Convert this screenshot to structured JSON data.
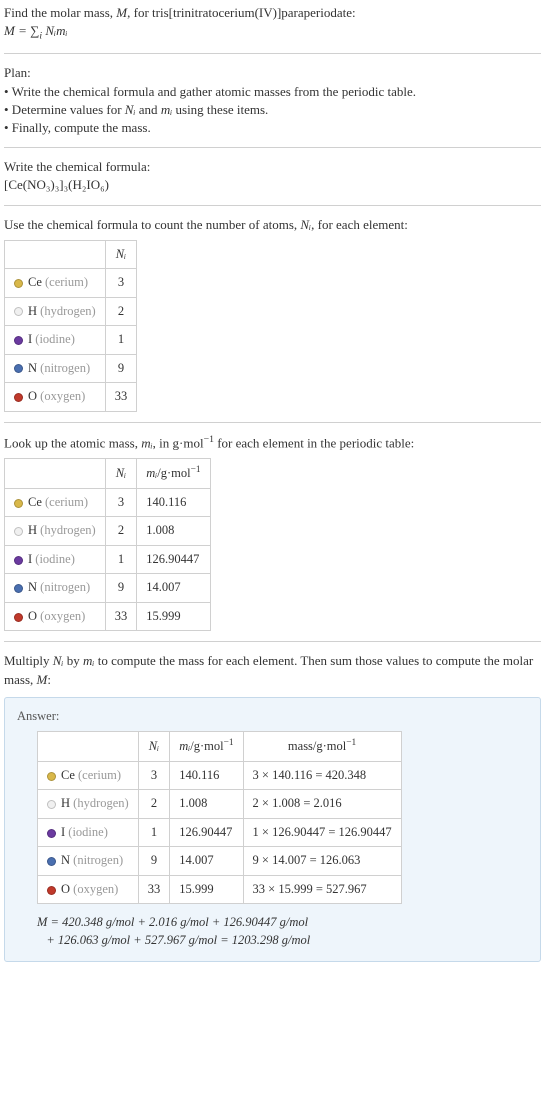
{
  "intro": {
    "line1_prefix": "Find the molar mass, ",
    "line1_var": "M",
    "line1_suffix": ", for tris[trinitratocerium(IV)]paraperiodate:",
    "eq": "M = ∑",
    "eq_idx": "i",
    "eq_rhs": " Nᵢmᵢ"
  },
  "plan": {
    "title": "Plan:",
    "b1": "• Write the chemical formula and gather atomic masses from the periodic table.",
    "b2_prefix": "• Determine values for ",
    "b2_var1": "Nᵢ",
    "b2_mid": " and ",
    "b2_var2": "mᵢ",
    "b2_suffix": " using these items.",
    "b3": "• Finally, compute the mass."
  },
  "chemFormula": {
    "title": "Write the chemical formula:",
    "formula_html": "[Ce(NO₃)₃]₃(H₂IO₆)"
  },
  "countAtoms": {
    "text_prefix": "Use the chemical formula to count the number of atoms, ",
    "text_var": "Nᵢ",
    "text_suffix": ", for each element:",
    "header": "Nᵢ",
    "rows": [
      {
        "dot": "#d9b84a",
        "sym": "Ce",
        "name": "(cerium)",
        "n": "3"
      },
      {
        "dot": "#f0f0f0",
        "sym": "H",
        "name": "(hydrogen)",
        "n": "2"
      },
      {
        "dot": "#6b3aa0",
        "sym": "I",
        "name": "(iodine)",
        "n": "1"
      },
      {
        "dot": "#4a6fb0",
        "sym": "N",
        "name": "(nitrogen)",
        "n": "9"
      },
      {
        "dot": "#c0392b",
        "sym": "O",
        "name": "(oxygen)",
        "n": "33"
      }
    ]
  },
  "atomicMass": {
    "text_prefix": "Look up the atomic mass, ",
    "text_var": "mᵢ",
    "text_mid": ", in g·mol",
    "text_exp": "−1",
    "text_suffix": " for each element in the periodic table:",
    "h1": "Nᵢ",
    "h2_pre": "mᵢ",
    "h2_mid": "/g·mol",
    "h2_exp": "−1",
    "rows": [
      {
        "dot": "#d9b84a",
        "sym": "Ce",
        "name": "(cerium)",
        "n": "3",
        "m": "140.116"
      },
      {
        "dot": "#f0f0f0",
        "sym": "H",
        "name": "(hydrogen)",
        "n": "2",
        "m": "1.008"
      },
      {
        "dot": "#6b3aa0",
        "sym": "I",
        "name": "(iodine)",
        "n": "1",
        "m": "126.90447"
      },
      {
        "dot": "#4a6fb0",
        "sym": "N",
        "name": "(nitrogen)",
        "n": "9",
        "m": "14.007"
      },
      {
        "dot": "#c0392b",
        "sym": "O",
        "name": "(oxygen)",
        "n": "33",
        "m": "15.999"
      }
    ]
  },
  "multiply": {
    "text_prefix": "Multiply ",
    "text_v1": "Nᵢ",
    "text_by": " by ",
    "text_v2": "mᵢ",
    "text_mid": " to compute the mass for each element. Then sum those values to compute the molar mass, ",
    "text_v3": "M",
    "text_suffix": ":"
  },
  "answer": {
    "label": "Answer:",
    "h1": "Nᵢ",
    "h2_pre": "mᵢ",
    "h2_mid": "/g·mol",
    "h2_exp": "−1",
    "h3_pre": "mass/g·mol",
    "h3_exp": "−1",
    "rows": [
      {
        "dot": "#d9b84a",
        "sym": "Ce",
        "name": "(cerium)",
        "n": "3",
        "m": "140.116",
        "calc": "3 × 140.116 = 420.348"
      },
      {
        "dot": "#f0f0f0",
        "sym": "H",
        "name": "(hydrogen)",
        "n": "2",
        "m": "1.008",
        "calc": "2 × 1.008 = 2.016"
      },
      {
        "dot": "#6b3aa0",
        "sym": "I",
        "name": "(iodine)",
        "n": "1",
        "m": "126.90447",
        "calc": "1 × 126.90447 = 126.90447"
      },
      {
        "dot": "#4a6fb0",
        "sym": "N",
        "name": "(nitrogen)",
        "n": "9",
        "m": "14.007",
        "calc": "9 × 14.007 = 126.063"
      },
      {
        "dot": "#c0392b",
        "sym": "O",
        "name": "(oxygen)",
        "n": "33",
        "m": "15.999",
        "calc": "33 × 15.999 = 527.967"
      }
    ],
    "final1": "M = 420.348 g/mol + 2.016 g/mol + 126.90447 g/mol",
    "final2": "   + 126.063 g/mol + 527.967 g/mol = 1203.298 g/mol"
  }
}
